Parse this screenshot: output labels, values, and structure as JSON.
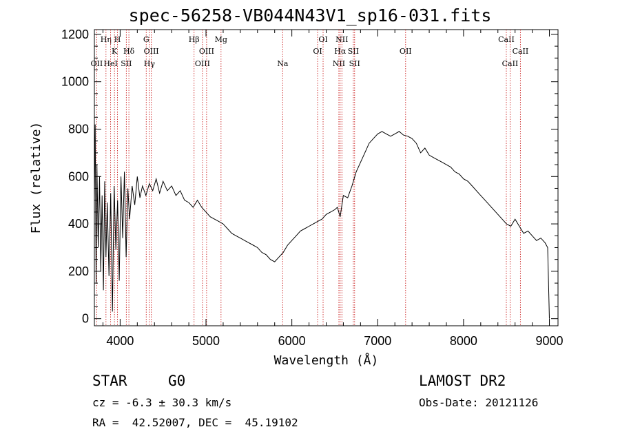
{
  "title": "spec-56258-VB044N43V1_sp16-031.fits",
  "footer": {
    "class": "STAR",
    "subclass": "G0",
    "survey": "LAMOST DR2",
    "cz": "cz = -6.3 ± 30.3 km/s",
    "obs_date": "Obs-Date: 20121126",
    "coords": "RA =  42.52007, DEC =  45.19102"
  },
  "chart_data": {
    "type": "line",
    "title": "spec-56258-VB044N43V1_sp16-031.fits",
    "xlabel": "Wavelength (Å)",
    "ylabel": "Flux (relative)",
    "xlim": [
      3700,
      9100
    ],
    "ylim": [
      -30,
      1220
    ],
    "xticks": [
      4000,
      5000,
      6000,
      7000,
      8000,
      9000
    ],
    "yticks": [
      0,
      200,
      400,
      600,
      800,
      1000,
      1200
    ],
    "grid": false,
    "series": [
      {
        "x": [
          3700,
          3710,
          3720,
          3730,
          3745,
          3760,
          3775,
          3790,
          3805,
          3820,
          3835,
          3850,
          3870,
          3890,
          3910,
          3930,
          3950,
          3970,
          3990,
          4010,
          4030,
          4050,
          4070,
          4090,
          4110,
          4140,
          4170,
          4200,
          4230,
          4260,
          4300,
          4340,
          4380,
          4420,
          4460,
          4500,
          4550,
          4600,
          4650,
          4700,
          4750,
          4800,
          4850,
          4900,
          4950,
          5000,
          5050,
          5100,
          5150,
          5200,
          5250,
          5300,
          5350,
          5400,
          5450,
          5500,
          5550,
          5600,
          5650,
          5700,
          5750,
          5800,
          5850,
          5900,
          5950,
          6000,
          6050,
          6100,
          6150,
          6200,
          6250,
          6300,
          6350,
          6400,
          6450,
          6500,
          6530,
          6563,
          6600,
          6650,
          6700,
          6750,
          6800,
          6850,
          6900,
          6950,
          7000,
          7050,
          7100,
          7150,
          7200,
          7250,
          7300,
          7350,
          7400,
          7450,
          7500,
          7550,
          7600,
          7650,
          7700,
          7750,
          7800,
          7850,
          7900,
          7950,
          8000,
          8050,
          8100,
          8150,
          8200,
          8250,
          8300,
          8350,
          8400,
          8450,
          8500,
          8550,
          8600,
          8650,
          8700,
          8750,
          8800,
          8850,
          8900,
          8950,
          8980,
          9000
        ],
        "y": [
          500,
          820,
          150,
          650,
          300,
          600,
          200,
          520,
          120,
          580,
          260,
          490,
          180,
          530,
          30,
          560,
          290,
          500,
          160,
          600,
          340,
          620,
          260,
          550,
          420,
          560,
          480,
          600,
          510,
          560,
          520,
          570,
          540,
          590,
          530,
          580,
          540,
          560,
          520,
          540,
          500,
          490,
          470,
          500,
          470,
          450,
          430,
          420,
          410,
          400,
          380,
          360,
          350,
          340,
          330,
          320,
          310,
          300,
          280,
          270,
          250,
          240,
          260,
          280,
          310,
          330,
          350,
          370,
          380,
          390,
          400,
          410,
          420,
          440,
          450,
          460,
          470,
          430,
          520,
          510,
          560,
          620,
          660,
          700,
          740,
          760,
          780,
          790,
          780,
          770,
          780,
          790,
          775,
          770,
          760,
          740,
          700,
          720,
          690,
          680,
          670,
          660,
          650,
          640,
          620,
          610,
          590,
          580,
          560,
          540,
          520,
          500,
          480,
          460,
          440,
          420,
          400,
          390,
          420,
          390,
          360,
          370,
          350,
          330,
          340,
          320,
          300,
          0
        ]
      }
    ],
    "lines": [
      {
        "label": "OII",
        "x": 3727,
        "row": 2
      },
      {
        "label": "Hη",
        "x": 3835,
        "row": 0
      },
      {
        "label": "HeI",
        "x": 3889,
        "row": 2
      },
      {
        "label": "K",
        "x": 3934,
        "row": 1
      },
      {
        "label": "SII",
        "x": 4072,
        "row": 2
      },
      {
        "label": "H",
        "x": 3969,
        "row": 0
      },
      {
        "label": "Hδ",
        "x": 4102,
        "row": 1
      },
      {
        "label": "G",
        "x": 4304,
        "row": 0
      },
      {
        "label": "OIII",
        "x": 4363,
        "row": 1
      },
      {
        "label": "Hγ",
        "x": 4341,
        "row": 2
      },
      {
        "label": "Hβ",
        "x": 4861,
        "row": 0
      },
      {
        "label": "OIII",
        "x": 4959,
        "row": 2
      },
      {
        "label": "OIII",
        "x": 5007,
        "row": 1
      },
      {
        "label": "Mg",
        "x": 5175,
        "row": 0
      },
      {
        "label": "Na",
        "x": 5893,
        "row": 2
      },
      {
        "label": "OI",
        "x": 6300,
        "row": 1
      },
      {
        "label": "OI",
        "x": 6364,
        "row": 0
      },
      {
        "label": "NII",
        "x": 6548,
        "row": 2
      },
      {
        "label": "Hα",
        "x": 6563,
        "row": 1
      },
      {
        "label": "NII",
        "x": 6583,
        "row": 0
      },
      {
        "label": "SII",
        "x": 6716,
        "row": 1
      },
      {
        "label": "SII",
        "x": 6731,
        "row": 2
      },
      {
        "label": "OII",
        "x": 7325,
        "row": 1
      },
      {
        "label": "CaII",
        "x": 8498,
        "row": 0
      },
      {
        "label": "CaII",
        "x": 8542,
        "row": 2
      },
      {
        "label": "CaII",
        "x": 8662,
        "row": 1
      }
    ]
  }
}
